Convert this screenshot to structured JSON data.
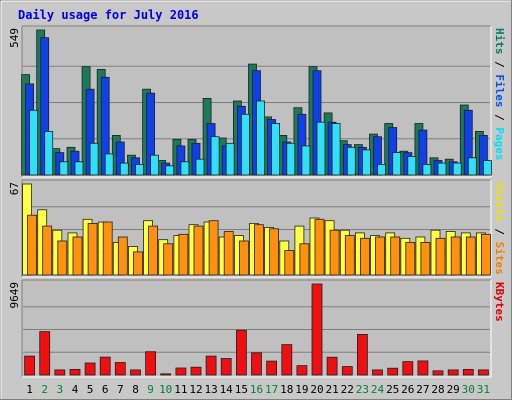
{
  "chart_data": {
    "type": "bar",
    "title": "Daily usage for July 2016",
    "days": [
      "1",
      "2",
      "3",
      "4",
      "5",
      "6",
      "7",
      "8",
      "9",
      "10",
      "11",
      "12",
      "13",
      "14",
      "15",
      "16",
      "17",
      "18",
      "19",
      "20",
      "21",
      "22",
      "23",
      "24",
      "25",
      "26",
      "27",
      "28",
      "29",
      "30",
      "31"
    ],
    "weekend_days": [
      "2",
      "3",
      "9",
      "10",
      "16",
      "17",
      "23",
      "24",
      "30",
      "31"
    ],
    "panels": [
      {
        "id": "hits",
        "max_label": "549",
        "ymax": 549,
        "right_legend": [
          "Pages",
          "Files",
          "Hits"
        ],
        "legend_colors": [
          "#00e0f0",
          "#0050f0",
          "#008060"
        ],
        "series": [
          {
            "name": "Hits",
            "color": "#1a7a5a",
            "values": [
              380,
              549,
              100,
              105,
              410,
              400,
              150,
              75,
              325,
              55,
              135,
              135,
              290,
              140,
              280,
              420,
              220,
              150,
              255,
              410,
              235,
              130,
              115,
              155,
              195,
              90,
              195,
              65,
              60,
              265,
              165
            ]
          },
          {
            "name": "Files",
            "color": "#1040e8",
            "values": [
              345,
              520,
              85,
              90,
              325,
              370,
              125,
              65,
              310,
              45,
              110,
              120,
              195,
              110,
              260,
              395,
              210,
              125,
              230,
              395,
              200,
              115,
              105,
              145,
              180,
              85,
              170,
              55,
              50,
              245,
              150
            ]
          },
          {
            "name": "Pages",
            "color": "#30e0f8",
            "values": [
              245,
              165,
              50,
              50,
              120,
              80,
              45,
              40,
              75,
              35,
              50,
              60,
              145,
              120,
              230,
              280,
              195,
              120,
              110,
              200,
              195,
              105,
              95,
              40,
              85,
              70,
              40,
              45,
              45,
              65,
              55
            ]
          }
        ]
      },
      {
        "id": "visits",
        "max_label": "67",
        "ymax": 67,
        "right_legend": [
          "Sites",
          "Visits"
        ],
        "legend_colors": [
          "#f08000",
          "#f0e000"
        ],
        "series": [
          {
            "name": "Visits",
            "color": "#ffff44",
            "values": [
              67,
              48,
              33,
              31,
              41,
              39,
              24,
              21,
              40,
              26,
              29,
              37,
              39,
              28,
              29,
              38,
              35,
              25,
              36,
              42,
              40,
              33,
              31,
              29,
              31,
              27,
              28,
              33,
              32,
              31,
              31
            ]
          },
          {
            "name": "Sites",
            "color": "#ff9010",
            "values": [
              44,
              36,
              25,
              28,
              38,
              39,
              28,
              17,
              36,
              23,
              30,
              36,
              40,
              32,
              25,
              37,
              34,
              18,
              23,
              41,
              33,
              29,
              27,
              28,
              28,
              24,
              24,
              27,
              28,
              28,
              30
            ]
          }
        ]
      },
      {
        "id": "kbytes",
        "max_label": "9649",
        "ymax": 9649,
        "right_legend": [
          "KBytes"
        ],
        "legend_colors": [
          "#e00000"
        ],
        "series": [
          {
            "name": "KBytes",
            "color": "#ee1010",
            "values": [
              2000,
              4600,
              540,
              590,
              1270,
              1900,
              1330,
              540,
              2470,
              130,
              740,
              830,
              2000,
              1750,
              4750,
              2350,
              1470,
              3220,
              1000,
              9649,
              1890,
              900,
              4300,
              540,
              720,
              1420,
              1500,
              450,
              540,
              590,
              540
            ]
          }
        ]
      }
    ],
    "colors": {
      "background": "#c8c8c8",
      "plot_area": "#c0c0c0",
      "title": "#0000e0",
      "weekday_label": "#000000",
      "weekend_label": "#008040"
    }
  }
}
